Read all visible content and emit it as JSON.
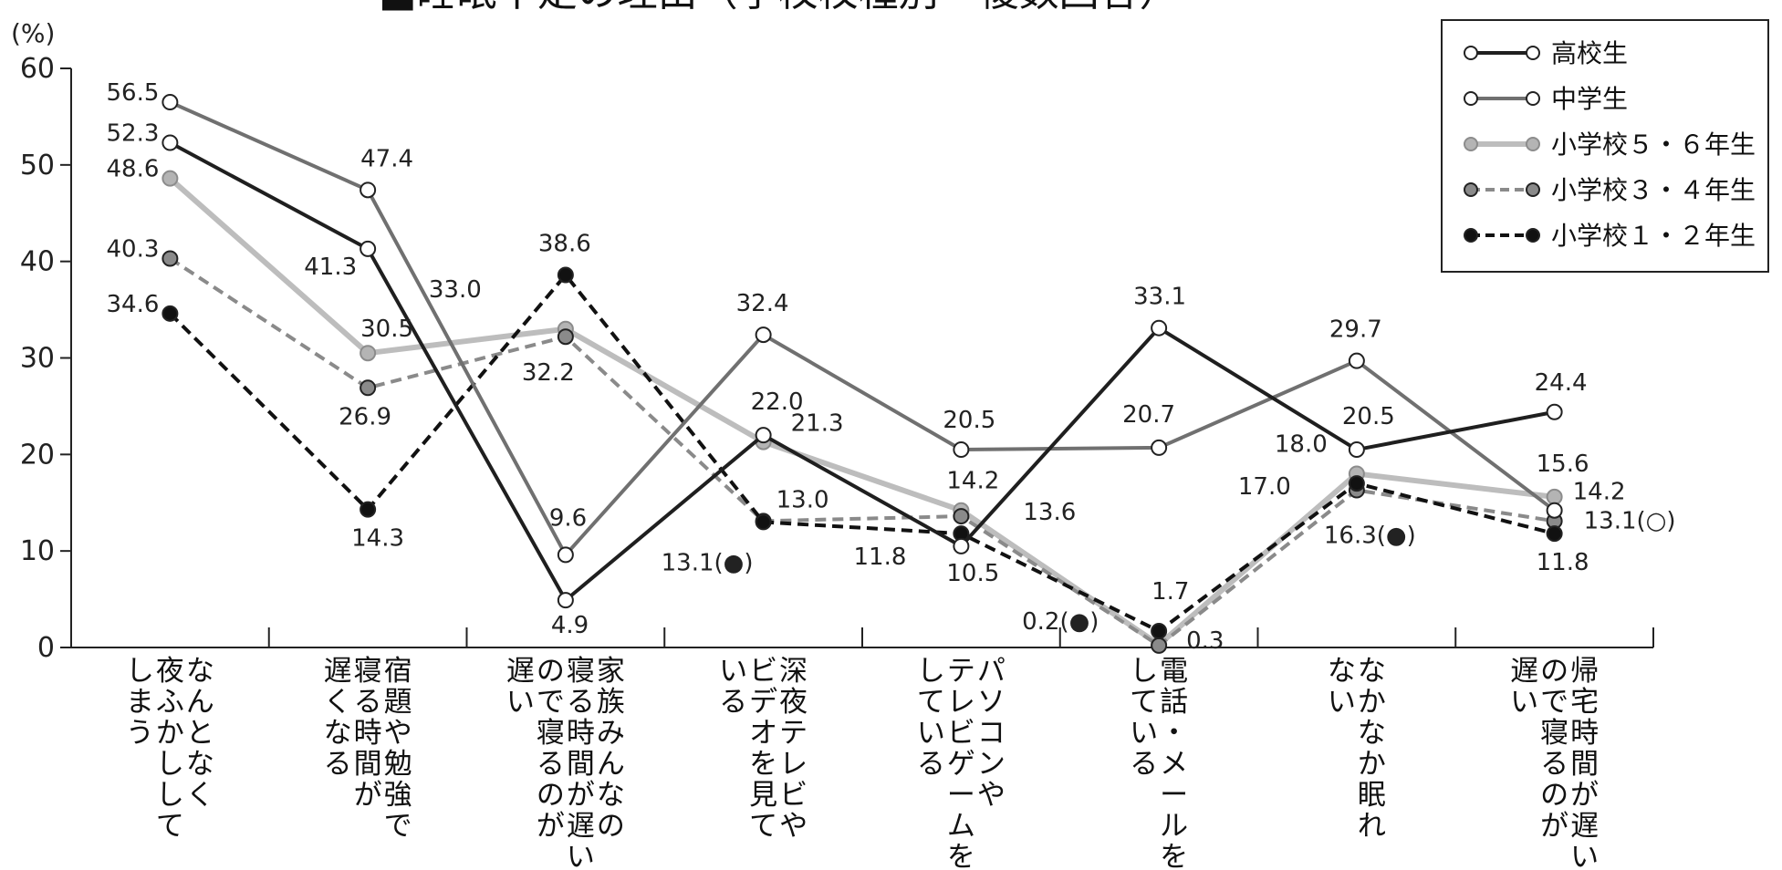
{
  "chart_data": {
    "type": "line",
    "title": "■睡眠不足の理由（学校校種別・複数回答）",
    "ylabel": "(%)",
    "ylim": [
      0,
      60
    ],
    "yticks": [
      0,
      10,
      20,
      30,
      40,
      50,
      60
    ],
    "grid": false,
    "legend_position": "top-right",
    "categories": [
      [
        "なんとなく",
        "夜ふかしして",
        "しまう"
      ],
      [
        "宿題や勉強で",
        "寝る時間が",
        "遅くなる"
      ],
      [
        "家族みんなの",
        "寝る時間が遅い",
        "ので寝るのが",
        "遅い"
      ],
      [
        "深夜テレビや",
        "ビデオを見て",
        "いる"
      ],
      [
        "パソコンや",
        "テレビゲームを",
        "している"
      ],
      [
        "電話・メールを",
        "している"
      ],
      [
        "なかなか眠れ",
        "ない"
      ],
      [
        "帰宅時間が遅い",
        "ので寝るのが",
        "遅い"
      ]
    ],
    "series": [
      {
        "name": "高校生",
        "values": [
          52.3,
          41.3,
          4.9,
          22.0,
          10.5,
          33.1,
          20.5,
          24.4
        ],
        "color": "#1f1f1f",
        "marker_fill": "#ffffff",
        "dash": false
      },
      {
        "name": "中学生",
        "values": [
          56.5,
          47.4,
          9.6,
          32.4,
          20.5,
          20.7,
          29.7,
          14.2
        ],
        "color": "#707070",
        "marker_fill": "#ffffff",
        "dash": false
      },
      {
        "name": "小学校５・６年生",
        "values": [
          48.6,
          30.5,
          33.0,
          21.3,
          14.2,
          0.3,
          18.0,
          15.6
        ],
        "color": "#bdbdbd",
        "marker_fill": "#b4b4b4",
        "dash": false
      },
      {
        "name": "小学校３・４年生",
        "values": [
          40.3,
          26.9,
          32.2,
          13.1,
          13.6,
          0.2,
          16.3,
          13.1
        ],
        "color": "#8a8a8a",
        "marker_fill": "#8a8a8a",
        "dash": true
      },
      {
        "name": "小学校１・２年生",
        "values": [
          34.6,
          14.3,
          38.6,
          13.0,
          11.8,
          1.7,
          17.0,
          11.8
        ],
        "color": "#111111",
        "marker_fill": "#111111",
        "dash": true
      }
    ],
    "data_labels": [
      "56.5",
      "52.3",
      "48.6",
      "40.3",
      "34.6",
      "47.4",
      "41.3",
      "30.5",
      "26.9",
      "14.3",
      "33.0",
      "32.2",
      "38.6",
      "9.6",
      "4.9",
      "32.4",
      "22.0",
      "21.3",
      "13.0",
      "13.1(●)",
      "20.5",
      "14.2",
      "13.6",
      "11.8",
      "10.5",
      "33.1",
      "20.7",
      "1.7",
      "0.2(●)",
      "0.3",
      "29.7",
      "20.5",
      "18.0",
      "17.0",
      "16.3(●)",
      "24.4",
      "15.6",
      "14.2",
      "13.1(○)",
      "11.8"
    ]
  }
}
